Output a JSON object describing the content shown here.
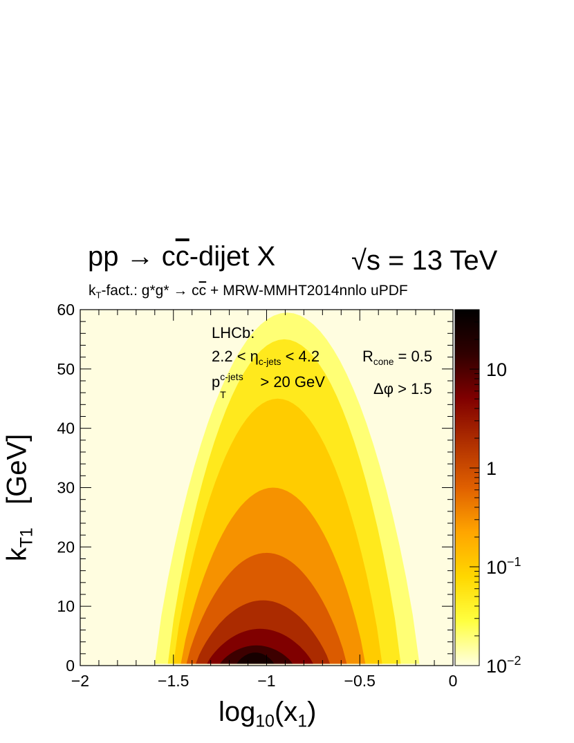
{
  "chart_data": {
    "type": "heatmap",
    "title": {
      "process_pre": "pp → c",
      "process_cbar": "c",
      "process_post": "-dijet X",
      "energy_root": "√",
      "energy": "s = 13 TeV"
    },
    "subtitle": {
      "k": "k",
      "k_sub": "T",
      "text_a": "-fact.: g*g* → c",
      "cbar": "c",
      "text_b": " + MRW-MMHT2014nnlo uPDF"
    },
    "annotations": {
      "experiment": "LHCb:",
      "eta_pre": "2.2 < η",
      "eta_sub": "c-jets",
      "eta_post": " < 4.2",
      "r_main": "R",
      "r_sub": "cone",
      "r_post": " = 0.5",
      "pt_main": "p",
      "pt_sub": "T",
      "pt_sup": "c-jets",
      "pt_post": " > 20 GeV",
      "dphi": "Δφ > 1.5"
    },
    "xlabel": {
      "main": "log",
      "sub1": "10",
      "mid": "(x",
      "sub2": "1",
      "end": ")"
    },
    "ylabel": {
      "main": "k",
      "sub": "T1",
      "unit": "   [GeV]"
    },
    "x_range": [
      -2,
      0
    ],
    "y_range": [
      0,
      60
    ],
    "x_ticks": [
      {
        "value": -2,
        "label": "−2"
      },
      {
        "value": -1.5,
        "label": "−1.5"
      },
      {
        "value": -1,
        "label": "−1"
      },
      {
        "value": -0.5,
        "label": "−0.5"
      },
      {
        "value": 0,
        "label": "0"
      }
    ],
    "y_ticks": [
      {
        "value": 0,
        "label": "0"
      },
      {
        "value": 10,
        "label": "10"
      },
      {
        "value": 20,
        "label": "20"
      },
      {
        "value": 30,
        "label": "30"
      },
      {
        "value": 40,
        "label": "40"
      },
      {
        "value": 50,
        "label": "50"
      },
      {
        "value": 60,
        "label": "60"
      }
    ],
    "z_scale": "log",
    "z_range": [
      0.01,
      40
    ],
    "z_ticks": [
      {
        "value": 10,
        "label": "10"
      },
      {
        "value": 1,
        "label": "1"
      },
      {
        "value": 0.1,
        "label": "10",
        "exp": "−1"
      },
      {
        "value": 0.01,
        "label": "10",
        "exp": "−2"
      }
    ],
    "contours": [
      {
        "level": 0.02,
        "x_min": -1.6,
        "x_max": -0.18,
        "y_max": 59.5
      },
      {
        "level": 0.05,
        "x_min": -1.53,
        "x_max": -0.28,
        "y_max": 55
      },
      {
        "level": 0.1,
        "x_min": -1.5,
        "x_max": -0.38,
        "y_max": 45
      },
      {
        "level": 0.3,
        "x_min": -1.46,
        "x_max": -0.47,
        "y_max": 30
      },
      {
        "level": 0.7,
        "x_min": -1.43,
        "x_max": -0.57,
        "y_max": 19
      },
      {
        "level": 2,
        "x_min": -1.38,
        "x_max": -0.66,
        "y_max": 11
      },
      {
        "level": 5,
        "x_min": -1.32,
        "x_max": -0.75,
        "y_max": 6.2
      },
      {
        "level": 12,
        "x_min": -1.25,
        "x_max": -0.86,
        "y_max": 3.4
      },
      {
        "level": 25,
        "x_min": -1.16,
        "x_max": -0.96,
        "y_max": 2.2
      }
    ],
    "grid": false,
    "legend": "none",
    "colors": {
      "background": "#FFFDE0",
      "scale": [
        "#FFFFE0",
        "#FFFF40",
        "#FFD700",
        "#FFA500",
        "#E06000",
        "#B03000",
        "#800000",
        "#300000",
        "#000000"
      ]
    }
  }
}
